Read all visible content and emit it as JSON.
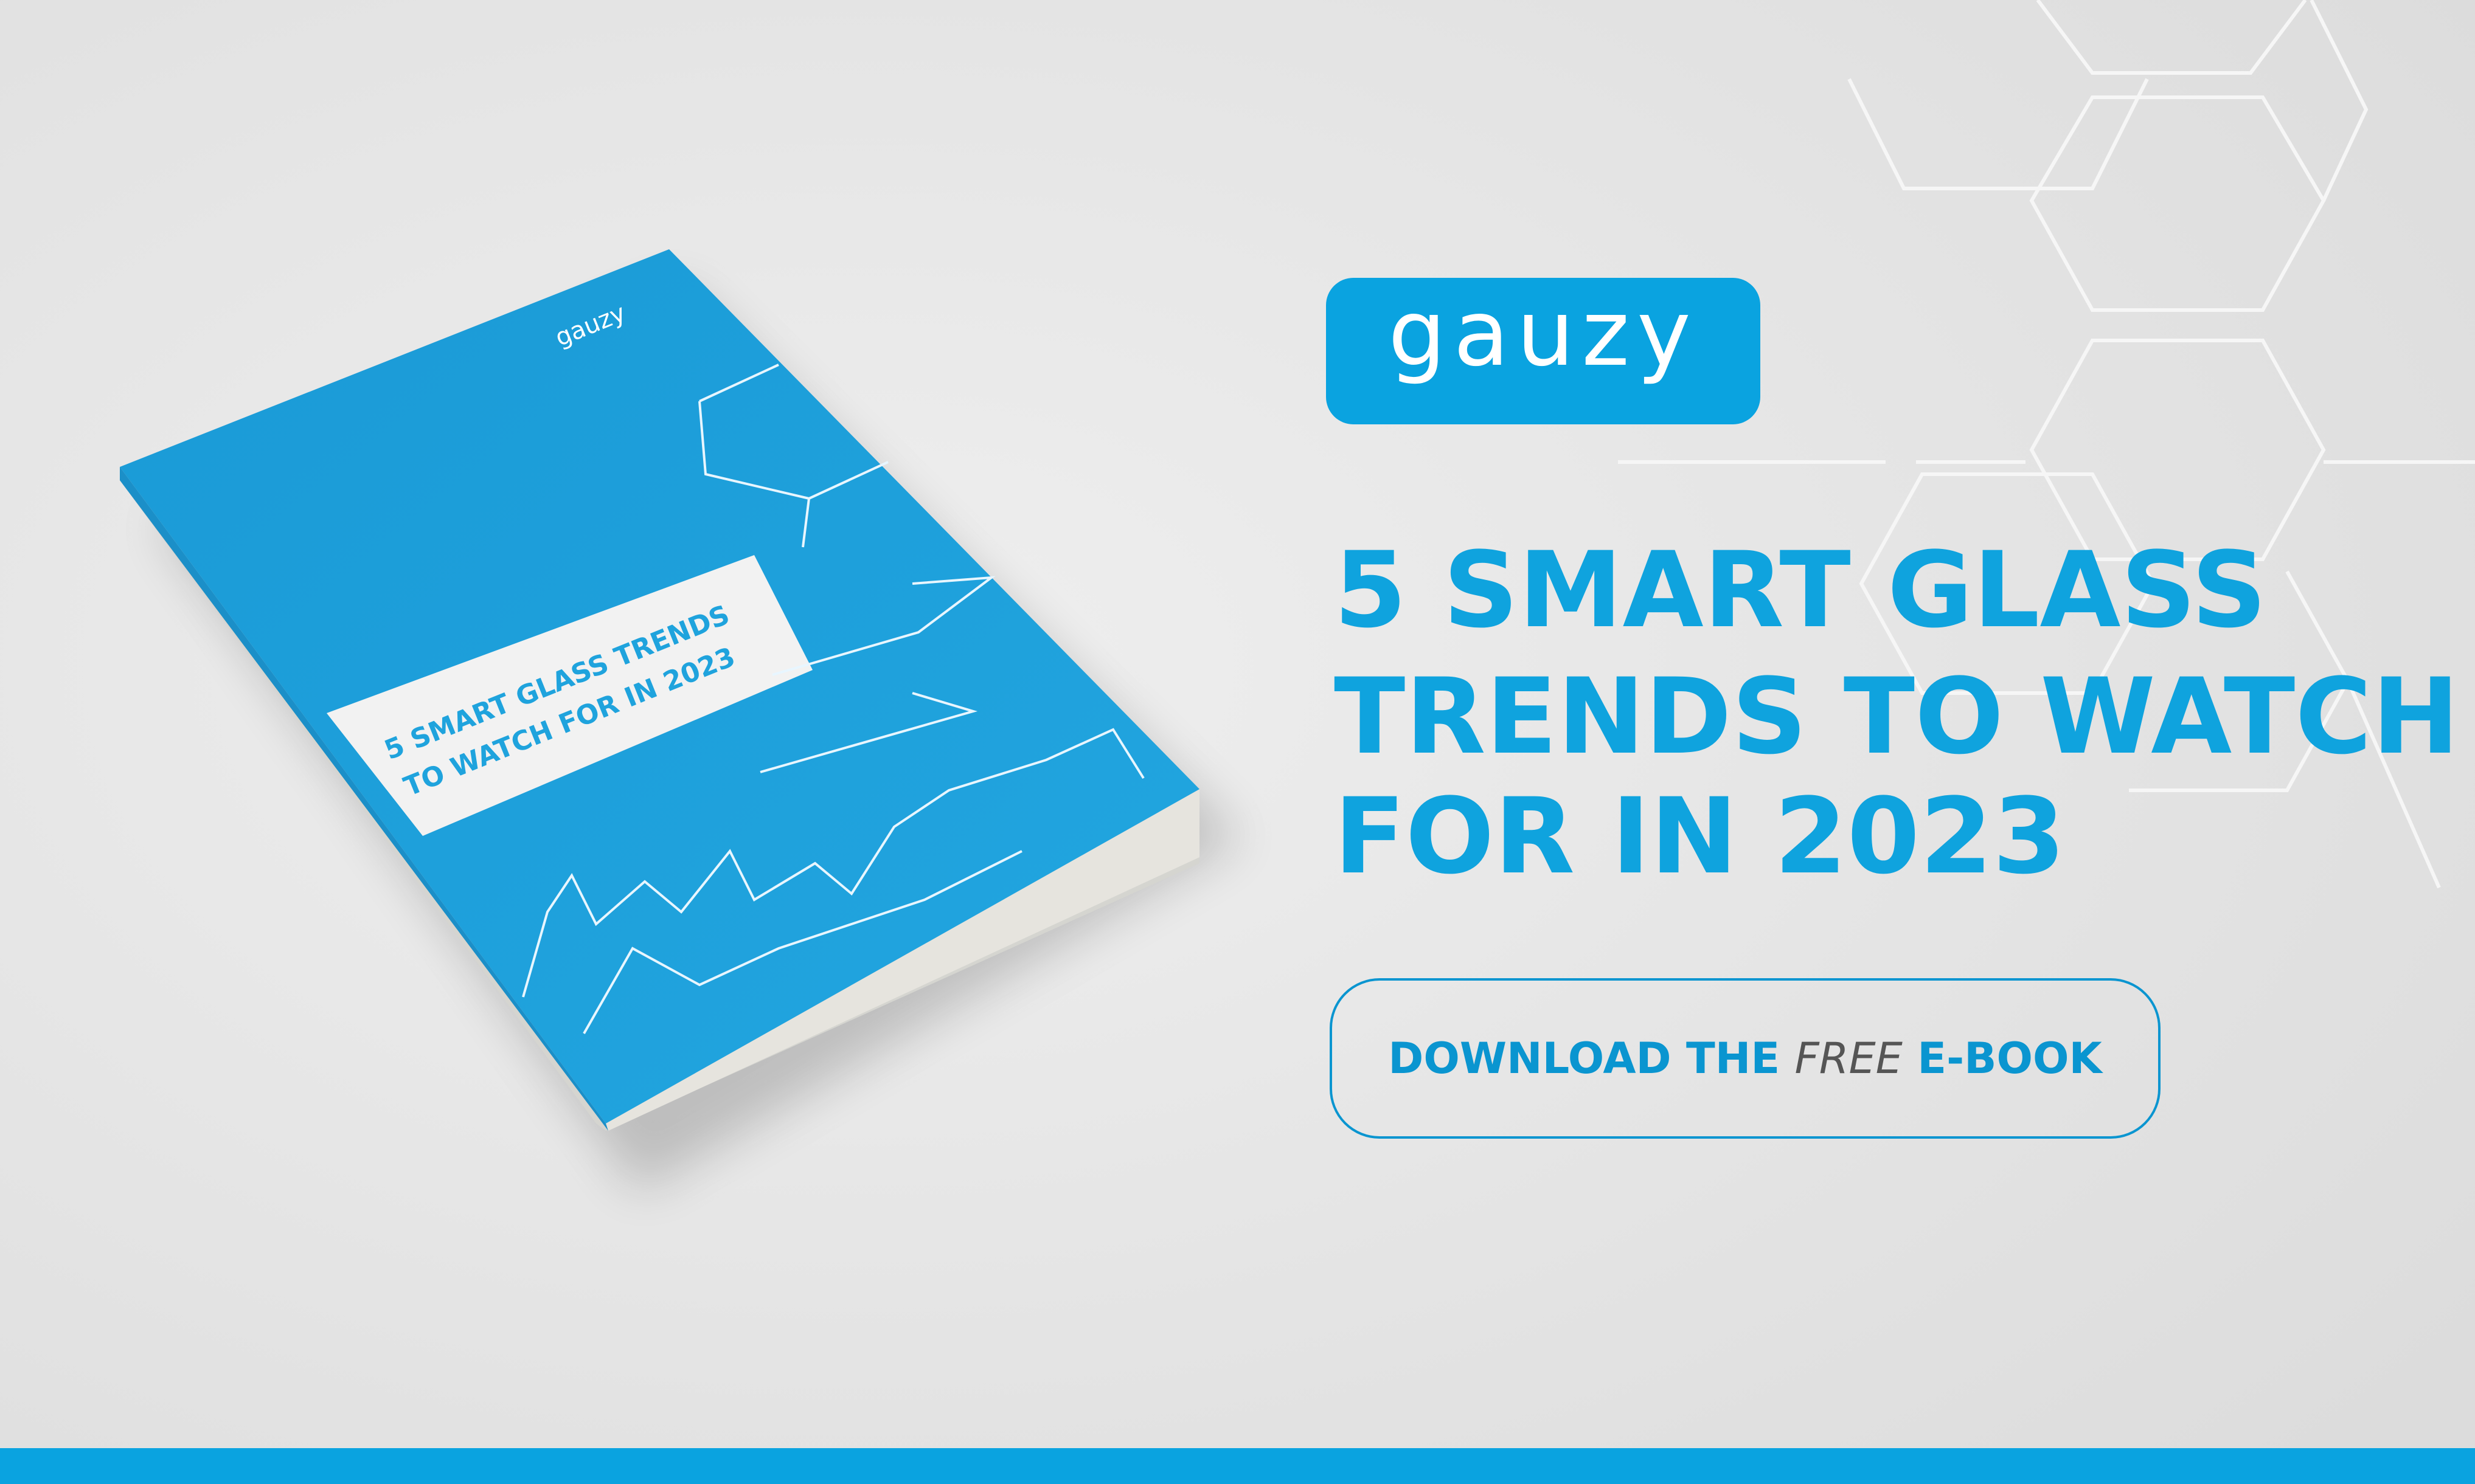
{
  "logo": "gauzy",
  "headline": [
    "5 SMART GLASS",
    "TRENDS TO WATCH",
    "FOR IN 2023"
  ],
  "button": {
    "parts": [
      "DOWNLOAD THE",
      "FREE",
      "E-BOOK"
    ]
  },
  "book": {
    "logo": "gauzy",
    "title": [
      "5 SMART GLASS TRENDS",
      "TO WATCH FOR IN 2023"
    ]
  }
}
